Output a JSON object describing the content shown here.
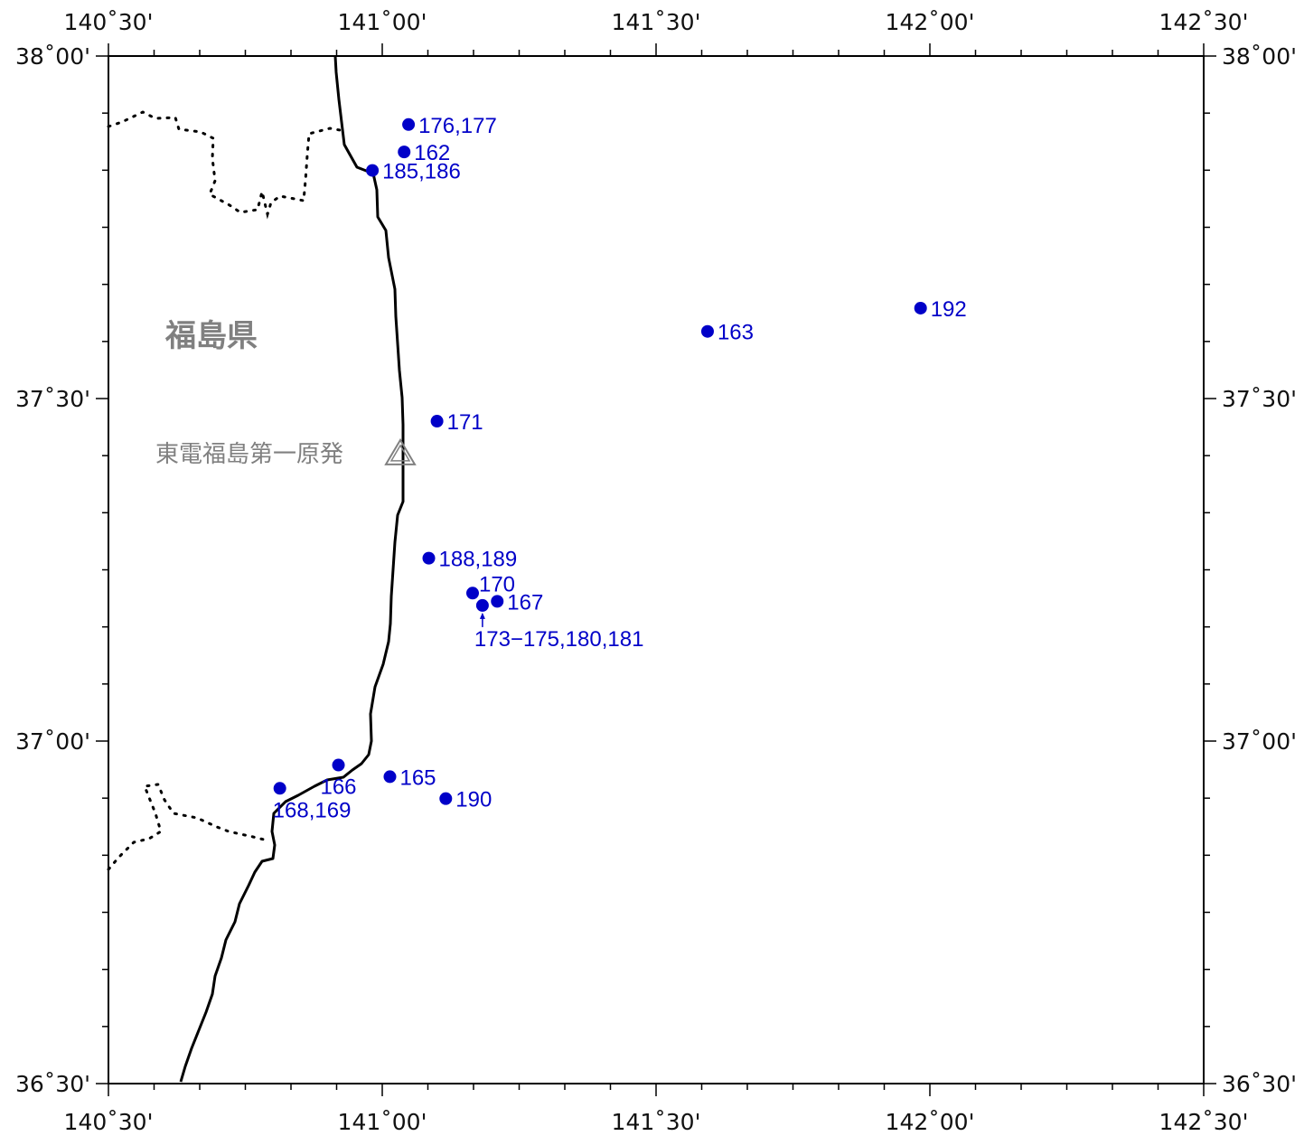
{
  "map": {
    "lon_range": [
      140.5,
      142.5
    ],
    "lat_range": [
      36.5,
      38.0
    ],
    "lon_ticks": [
      {
        "value": 140.5,
        "label": "140˚30'"
      },
      {
        "value": 141.0,
        "label": "141˚00'"
      },
      {
        "value": 141.5,
        "label": "141˚30'"
      },
      {
        "value": 142.0,
        "label": "142˚00'"
      },
      {
        "value": 142.5,
        "label": "142˚30'"
      }
    ],
    "lat_ticks": [
      {
        "value": 38.0,
        "label": "38˚00'"
      },
      {
        "value": 37.5,
        "label": "37˚30'"
      },
      {
        "value": 37.0,
        "label": "37˚00'"
      },
      {
        "value": 36.5,
        "label": "36˚30'"
      }
    ],
    "colors": {
      "station": "#0000c8",
      "coast": "#000000",
      "border": "#000000",
      "label_gray": "#808080"
    },
    "region_label": "福島県",
    "npp": {
      "label": "東電福島第一原発",
      "lon": 141.033,
      "lat": 37.421
    },
    "stations": [
      {
        "label": "176,177",
        "lon": 141.048,
        "lat": 37.9
      },
      {
        "label": "162",
        "lon": 141.04,
        "lat": 37.86
      },
      {
        "label": "185,186",
        "lon": 140.982,
        "lat": 37.833
      },
      {
        "label": "192",
        "lon": 141.983,
        "lat": 37.632
      },
      {
        "label": "163",
        "lon": 141.594,
        "lat": 37.598
      },
      {
        "label": "171",
        "lon": 141.1,
        "lat": 37.467
      },
      {
        "label": "188,189",
        "lon": 141.085,
        "lat": 37.267
      },
      {
        "label": "170",
        "lon": 141.165,
        "lat": 37.216
      },
      {
        "label": "167",
        "lon": 141.21,
        "lat": 37.204
      },
      {
        "label": "173−175,180,181",
        "lon": 141.183,
        "lat": 37.198
      },
      {
        "label": "166",
        "lon": 140.92,
        "lat": 36.965
      },
      {
        "label": "165",
        "lon": 141.014,
        "lat": 36.948
      },
      {
        "label": "168,169",
        "lon": 140.813,
        "lat": 36.931
      },
      {
        "label": "190",
        "lon": 141.116,
        "lat": 36.916
      }
    ]
  }
}
